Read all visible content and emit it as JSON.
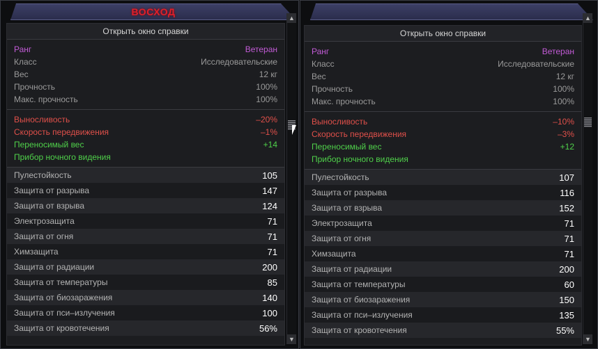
{
  "panels": [
    {
      "title": "ВОСХОД",
      "help_label": "Открыть окно справки",
      "info": [
        {
          "label": "Ранг",
          "value": "Ветеран",
          "style": "purple"
        },
        {
          "label": "Класс",
          "value": "Исследовательские"
        },
        {
          "label": "Вес",
          "value": "12 кг"
        },
        {
          "label": "Прочность",
          "value": "100%"
        },
        {
          "label": "Макс. прочность",
          "value": "100%"
        }
      ],
      "effects": [
        {
          "label": "Выносливость",
          "value": "–20%",
          "style": "red"
        },
        {
          "label": "Скорость передвижения",
          "value": "–1%",
          "style": "red"
        },
        {
          "label": "Переносимый вес",
          "value": "+14",
          "style": "green"
        },
        {
          "label": "Прибор ночного видения",
          "value": "",
          "style": "green"
        }
      ],
      "stats": [
        {
          "label": "Пулестойкость",
          "value": "105"
        },
        {
          "label": "Защита от разрыва",
          "value": "147"
        },
        {
          "label": "Защита от взрыва",
          "value": "124"
        },
        {
          "label": "Электрозащита",
          "value": "71"
        },
        {
          "label": "Защита от огня",
          "value": "71"
        },
        {
          "label": "Химзащита",
          "value": "71"
        },
        {
          "label": "Защита от радиации",
          "value": "200"
        },
        {
          "label": "Защита от температуры",
          "value": "85"
        },
        {
          "label": "Защита от биозаражения",
          "value": "140"
        },
        {
          "label": "Защита от пси–излучения",
          "value": "100"
        },
        {
          "label": "Защита от кровотечения",
          "value": "56%"
        }
      ],
      "scroll_position": 0.45
    },
    {
      "title": "",
      "help_label": "Открыть окно справки",
      "info": [
        {
          "label": "Ранг",
          "value": "Ветеран",
          "style": "purple"
        },
        {
          "label": "Класс",
          "value": "Исследовательские"
        },
        {
          "label": "Вес",
          "value": "12 кг"
        },
        {
          "label": "Прочность",
          "value": "100%"
        },
        {
          "label": "Макс. прочность",
          "value": "100%"
        }
      ],
      "effects": [
        {
          "label": "Выносливость",
          "value": "–10%",
          "style": "red"
        },
        {
          "label": "Скорость передвижения",
          "value": "–3%",
          "style": "red"
        },
        {
          "label": "Переносимый вес",
          "value": "+12",
          "style": "green"
        },
        {
          "label": "Прибор ночного видения",
          "value": "",
          "style": "green"
        }
      ],
      "stats": [
        {
          "label": "Пулестойкость",
          "value": "107"
        },
        {
          "label": "Защита от разрыва",
          "value": "116"
        },
        {
          "label": "Защита от взрыва",
          "value": "152"
        },
        {
          "label": "Электрозащита",
          "value": "71"
        },
        {
          "label": "Защита от огня",
          "value": "71"
        },
        {
          "label": "Химзащита",
          "value": "71"
        },
        {
          "label": "Защита от радиации",
          "value": "200"
        },
        {
          "label": "Защита от температуры",
          "value": "60"
        },
        {
          "label": "Защита от биозаражения",
          "value": "150"
        },
        {
          "label": "Защита от пси–излучения",
          "value": "135"
        },
        {
          "label": "Защита от кровотечения",
          "value": "55%"
        }
      ],
      "scroll_position": 0.45
    }
  ],
  "icons": {
    "scroll_up": "▲",
    "scroll_down": "▼"
  },
  "colors": {
    "title_red": "#e0202a",
    "rank_purple": "#c25bd6",
    "negative_red": "#e0504a",
    "positive_green": "#4fd04a"
  }
}
